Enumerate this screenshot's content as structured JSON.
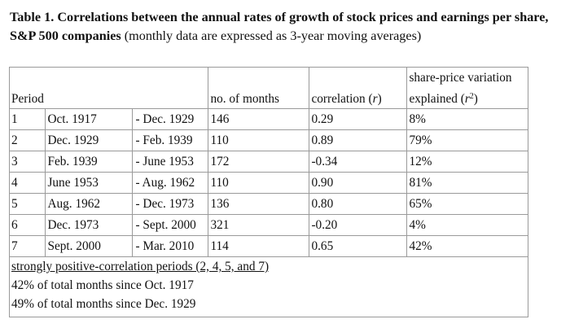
{
  "title": {
    "bold": "Table 1. Correlations between the annual rates of growth of stock prices and earnings per share, S&P 500 companies",
    "normal": " (monthly data are expressed as 3-year moving averages)"
  },
  "headers": {
    "period": "Period",
    "months": "no. of months",
    "correlation_prefix": "correlation (",
    "correlation_var": "r",
    "correlation_suffix": ")",
    "variation_line1": "share-price variation",
    "variation_line2_prefix": "explained (",
    "variation_var": "r",
    "variation_exp": "2",
    "variation_line2_suffix": ")"
  },
  "rows": [
    {
      "num": "1",
      "start": "Oct. 1917",
      "dash": "-",
      "end": "Dec. 1929",
      "months": "146",
      "corr": "0.29",
      "expl": "8%"
    },
    {
      "num": "2",
      "start": "Dec. 1929",
      "dash": "-",
      "end": "Feb. 1939",
      "months": "110",
      "corr": "0.89",
      "expl": "79%"
    },
    {
      "num": "3",
      "start": "Feb. 1939",
      "dash": "-",
      "end": "June 1953",
      "months": "172",
      "corr": "-0.34",
      "expl": "12%"
    },
    {
      "num": "4",
      "start": "June 1953",
      "dash": "-",
      "end": "Aug. 1962",
      "months": "110",
      "corr": "0.90",
      "expl": "81%"
    },
    {
      "num": "5",
      "start": "Aug. 1962",
      "dash": "-",
      "end": "Dec. 1973",
      "months": "136",
      "corr": "0.80",
      "expl": "65%"
    },
    {
      "num": "6",
      "start": "Dec. 1973",
      "dash": "-",
      "end": "Sept. 2000",
      "months": "321",
      "corr": "-0.20",
      "expl": "4%"
    },
    {
      "num": "7",
      "start": "Sept. 2000",
      "dash": "-",
      "end": "Mar. 2010",
      "months": "114",
      "corr": "0.65",
      "expl": "42%"
    }
  ],
  "footer": {
    "line1": "strongly positive-correlation periods (2, 4, 5, and 7)",
    "line2": "42% of total months since Oct. 1917",
    "line3": "49% of total months since Dec. 1929"
  }
}
